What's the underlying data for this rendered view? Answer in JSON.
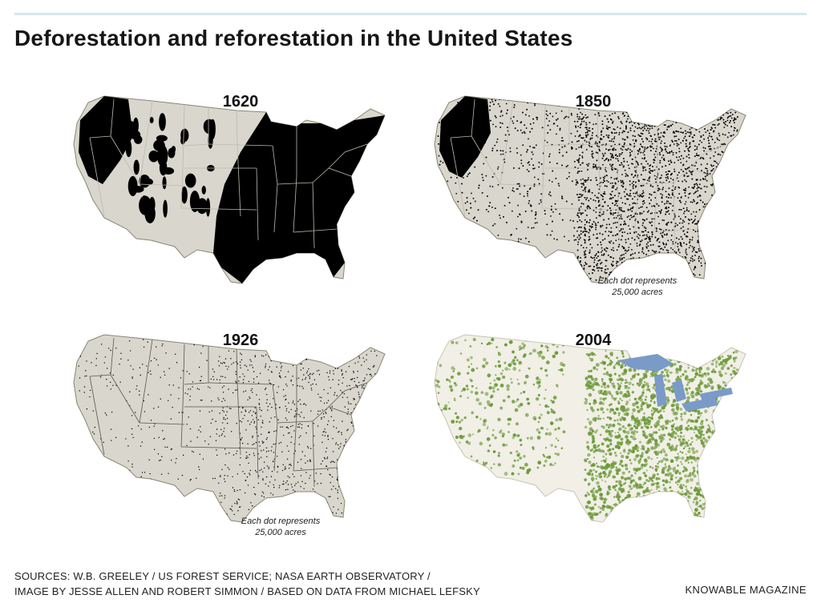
{
  "header": {
    "title": "Deforestation and reforestation in the United States"
  },
  "maps": [
    {
      "year": "1620",
      "style": "solid",
      "note": ""
    },
    {
      "year": "1850",
      "style": "dots",
      "note_line1": "Each dot represents",
      "note_line2": "25,000 acres"
    },
    {
      "year": "1926",
      "style": "sparse-dots",
      "note_line1": "Each dot represents",
      "note_line2": "25,000 acres"
    },
    {
      "year": "2004",
      "style": "satellite",
      "note": ""
    }
  ],
  "colors": {
    "land": "#d9d6cd",
    "land_2004": "#f1efe6",
    "forest": "#000000",
    "forest_2004": "#6e9a3c",
    "water_2004": "#7a9bc8",
    "border": "#ffffff"
  },
  "footer": {
    "sources_line1": "SOURCES: W.B. GREELEY / US FOREST SERVICE; NASA EARTH OBSERVATORY /",
    "sources_line2": "IMAGE BY JESSE ALLEN AND ROBERT SIMMON / BASED ON DATA FROM MICHAEL LEFSKY",
    "brand": "KNOWABLE MAGAZINE"
  }
}
